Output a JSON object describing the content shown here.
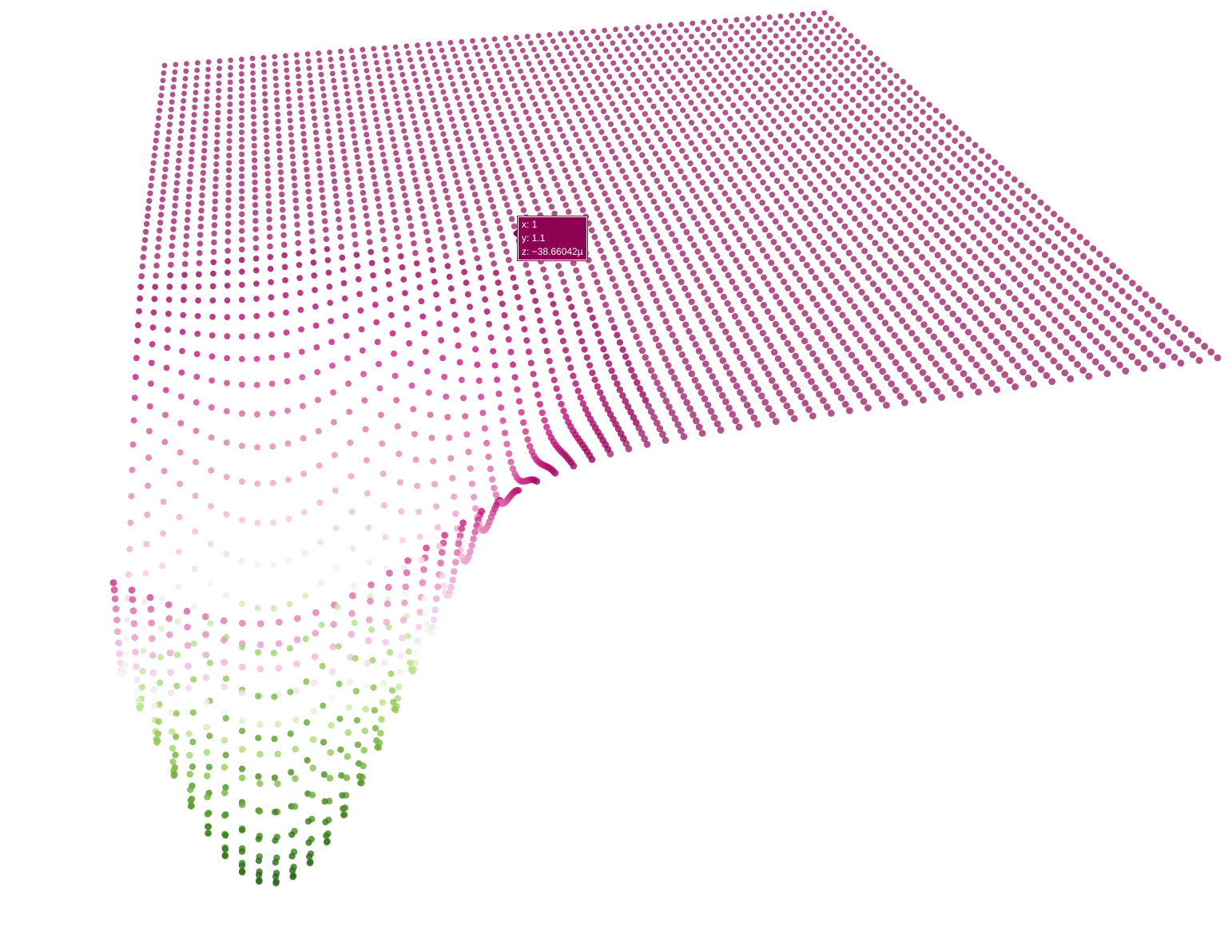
{
  "chart_data": {
    "type": "scatter",
    "subtype": "3d-scatter-surface",
    "title": "",
    "grid": {
      "x_range": [
        -3,
        3
      ],
      "y_range": [
        -3,
        3
      ],
      "resolution": 61
    },
    "colorscale": "PiYG",
    "colors": {
      "low": "#276419",
      "mid": "#f7f7f7",
      "high": "#8e0152",
      "surface": "#c51b7d"
    },
    "tooltip": {
      "x_label": "x: 1",
      "y_label": "y: 1.1",
      "z_label": "z: −38.66042µ"
    }
  }
}
